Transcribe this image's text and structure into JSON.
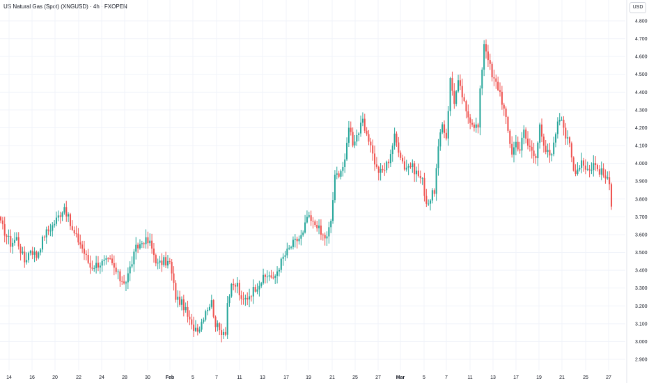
{
  "header": {
    "title": "US Natural Gas (Spot) (XNGUSD) · 4h · FXOPEN",
    "currency": "USD"
  },
  "colors": {
    "up": "#26a69a",
    "down": "#ef5350",
    "grid": "#f0f3fa",
    "axis_text": "#131722"
  },
  "chart_data": {
    "type": "candlestick",
    "title": "US Natural Gas (Spot) (XNGUSD) · 4h · FXOPEN",
    "ylim": [
      2.9,
      4.85
    ],
    "y_ticks": [
      "4.800",
      "4.700",
      "4.600",
      "4.500",
      "4.400",
      "4.300",
      "4.200",
      "4.100",
      "4.000",
      "3.900",
      "3.800",
      "3.700",
      "3.600",
      "3.500",
      "3.400",
      "3.300",
      "3.200",
      "3.100",
      "3.000",
      "2.900"
    ],
    "x_ticks": [
      {
        "label": "14",
        "month": false
      },
      {
        "label": "16",
        "month": false
      },
      {
        "label": "20",
        "month": false
      },
      {
        "label": "22",
        "month": false
      },
      {
        "label": "24",
        "month": false
      },
      {
        "label": "28",
        "month": false
      },
      {
        "label": "30",
        "month": false
      },
      {
        "label": "Feb",
        "month": true
      },
      {
        "label": "5",
        "month": false
      },
      {
        "label": "7",
        "month": false
      },
      {
        "label": "11",
        "month": false
      },
      {
        "label": "13",
        "month": false
      },
      {
        "label": "17",
        "month": false
      },
      {
        "label": "19",
        "month": false
      },
      {
        "label": "21",
        "month": false
      },
      {
        "label": "25",
        "month": false
      },
      {
        "label": "27",
        "month": false
      },
      {
        "label": "Mar",
        "month": true
      },
      {
        "label": "5",
        "month": false
      },
      {
        "label": "7",
        "month": false
      },
      {
        "label": "11",
        "month": false
      },
      {
        "label": "13",
        "month": false
      },
      {
        "label": "17",
        "month": false
      },
      {
        "label": "19",
        "month": false
      },
      {
        "label": "21",
        "month": false
      },
      {
        "label": "25",
        "month": false
      },
      {
        "label": "27",
        "month": false
      }
    ],
    "grid": true,
    "series": [
      {
        "anchors": [
          [
            0,
            3.66
          ],
          [
            5,
            3.55
          ],
          [
            8,
            3.58
          ],
          [
            12,
            3.45
          ],
          [
            15,
            3.52
          ],
          [
            18,
            3.48
          ],
          [
            22,
            3.6
          ],
          [
            26,
            3.65
          ],
          [
            30,
            3.72
          ],
          [
            32,
            3.76
          ],
          [
            36,
            3.62
          ],
          [
            40,
            3.55
          ],
          [
            45,
            3.42
          ],
          [
            50,
            3.44
          ],
          [
            55,
            3.45
          ],
          [
            60,
            3.35
          ],
          [
            63,
            3.34
          ],
          [
            68,
            3.52
          ],
          [
            72,
            3.57
          ],
          [
            75,
            3.55
          ],
          [
            79,
            3.43
          ],
          [
            82,
            3.45
          ],
          [
            85,
            3.44
          ],
          [
            88,
            3.25
          ],
          [
            92,
            3.2
          ],
          [
            96,
            3.08
          ],
          [
            100,
            3.08
          ],
          [
            103,
            3.18
          ],
          [
            106,
            3.22
          ],
          [
            108,
            3.1
          ],
          [
            110,
            3.06
          ],
          [
            113,
            3.06
          ],
          [
            114,
            3.22
          ],
          [
            116,
            3.3
          ],
          [
            119,
            3.32
          ],
          [
            121,
            3.22
          ],
          [
            124,
            3.25
          ],
          [
            127,
            3.29
          ],
          [
            130,
            3.33
          ],
          [
            133,
            3.36
          ],
          [
            135,
            3.38
          ],
          [
            137,
            3.34
          ],
          [
            139,
            3.4
          ],
          [
            142,
            3.47
          ],
          [
            145,
            3.52
          ],
          [
            147,
            3.55
          ],
          [
            150,
            3.58
          ],
          [
            152,
            3.6
          ],
          [
            154,
            3.7
          ],
          [
            157,
            3.66
          ],
          [
            159,
            3.66
          ],
          [
            161,
            3.6
          ],
          [
            164,
            3.58
          ],
          [
            166,
            3.68
          ],
          [
            168,
            3.92
          ],
          [
            170,
            3.95
          ],
          [
            173,
            4.0
          ],
          [
            175,
            4.22
          ],
          [
            177,
            4.12
          ],
          [
            180,
            4.18
          ],
          [
            182,
            4.23
          ],
          [
            184,
            4.14
          ],
          [
            186,
            4.12
          ],
          [
            187,
            4.05
          ],
          [
            189,
            3.97
          ],
          [
            191,
            3.95
          ],
          [
            193,
            3.97
          ],
          [
            195,
            4.02
          ],
          [
            198,
            4.15
          ],
          [
            201,
            4.05
          ],
          [
            203,
            3.98
          ],
          [
            206,
            3.99
          ],
          [
            209,
            3.95
          ],
          [
            212,
            3.9
          ],
          [
            214,
            3.78
          ],
          [
            216,
            3.8
          ],
          [
            218,
            3.85
          ],
          [
            220,
            4.08
          ],
          [
            222,
            4.22
          ],
          [
            224,
            4.15
          ],
          [
            226,
            4.47
          ],
          [
            228,
            4.35
          ],
          [
            230,
            4.45
          ],
          [
            232,
            4.38
          ],
          [
            234,
            4.28
          ],
          [
            236,
            4.25
          ],
          [
            238,
            4.22
          ],
          [
            240,
            4.2
          ],
          [
            241,
            4.4
          ],
          [
            243,
            4.68
          ],
          [
            245,
            4.6
          ],
          [
            247,
            4.48
          ],
          [
            249,
            4.45
          ],
          [
            251,
            4.4
          ],
          [
            253,
            4.3
          ],
          [
            255,
            4.18
          ],
          [
            257,
            4.06
          ],
          [
            259,
            4.12
          ],
          [
            261,
            4.08
          ],
          [
            263,
            4.18
          ],
          [
            265,
            4.1
          ],
          [
            267,
            4.08
          ],
          [
            269,
            4.05
          ],
          [
            271,
            4.2
          ],
          [
            273,
            4.08
          ],
          [
            276,
            4.05
          ],
          [
            278,
            4.1
          ],
          [
            280,
            4.25
          ],
          [
            282,
            4.27
          ],
          [
            284,
            4.15
          ],
          [
            286,
            4.1
          ],
          [
            288,
            3.96
          ],
          [
            290,
            3.97
          ],
          [
            292,
            4.02
          ],
          [
            294,
            3.98
          ],
          [
            296,
            3.96
          ],
          [
            298,
            4.0
          ],
          [
            300,
            3.97
          ],
          [
            302,
            3.95
          ],
          [
            304,
            3.92
          ],
          [
            306,
            3.88
          ],
          [
            307,
            3.78
          ]
        ]
      }
    ]
  }
}
